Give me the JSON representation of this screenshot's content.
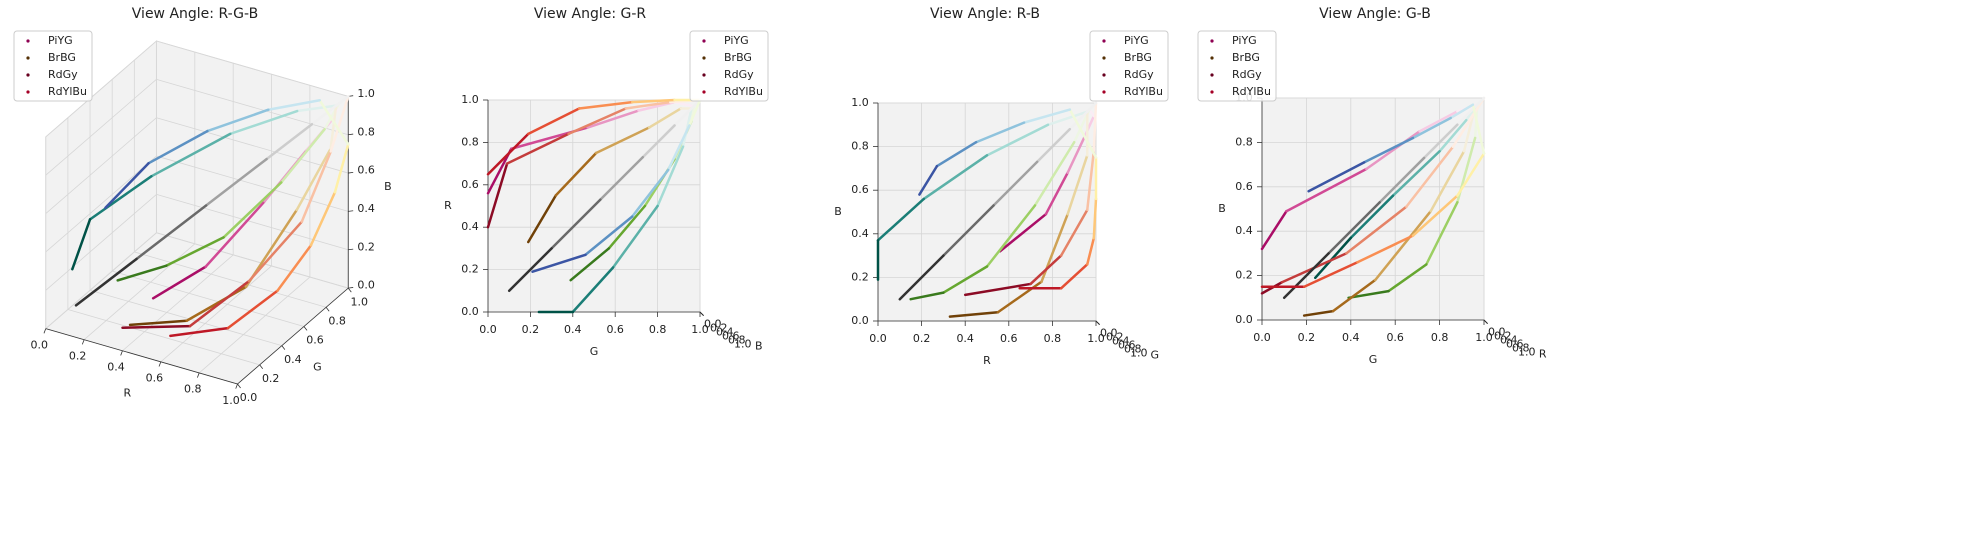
{
  "chart_data": [
    {
      "type": "line3d",
      "title": "View Angle: R-G-B",
      "xlabel": "R",
      "ylabel": "G",
      "zlabel": "B",
      "elev": 30,
      "azim": -60,
      "xlim": [
        0,
        1
      ],
      "ylim": [
        0,
        1
      ],
      "zlim": [
        0,
        1
      ],
      "xticks": [
        {
          "value": 0,
          "label": "0.0"
        },
        0.2,
        0.4,
        0.6,
        0.8,
        {
          "value": 1,
          "label": "1.0"
        }
      ],
      "yticks": [
        {
          "value": 0,
          "label": "0.0"
        },
        0.2,
        0.4,
        0.6,
        0.8,
        {
          "value": 1,
          "label": "1.0"
        }
      ],
      "zticks": [
        {
          "value": 0,
          "label": "0.0"
        },
        0.2,
        0.4,
        0.6,
        0.8,
        {
          "value": 1,
          "label": "1.0"
        }
      ],
      "grid": true,
      "legend": "upper left",
      "series": [
        {
          "name": "PiYG",
          "color": "#8e0152",
          "x": [
            0.56,
            0.77,
            0.87,
            0.95,
            0.99,
            0.97,
            0.9,
            0.72,
            0.5,
            0.3,
            0.15
          ],
          "y": [
            0,
            0.11,
            0.47,
            0.71,
            0.88,
            0.97,
            0.96,
            0.88,
            0.74,
            0.57,
            0.39
          ],
          "z": [
            0.32,
            0.49,
            0.68,
            0.85,
            0.94,
            0.97,
            0.82,
            0.53,
            0.25,
            0.13,
            0.1
          ]
        },
        {
          "name": "BrBG",
          "color": "#543005",
          "x": [
            0.33,
            0.55,
            0.75,
            0.87,
            0.96,
            0.96,
            0.78,
            0.5,
            0.21,
            0,
            0
          ],
          "y": [
            0.19,
            0.32,
            0.51,
            0.76,
            0.91,
            0.96,
            0.92,
            0.8,
            0.59,
            0.4,
            0.24
          ],
          "z": [
            0.02,
            0.04,
            0.18,
            0.49,
            0.76,
            0.96,
            0.9,
            0.76,
            0.56,
            0.37,
            0.19
          ]
        },
        {
          "name": "RdGy",
          "color": "#67001f",
          "x": [
            0.4,
            0.7,
            0.84,
            0.96,
            0.99,
            1,
            0.88,
            0.73,
            0.53,
            0.3,
            0.1
          ],
          "y": [
            0,
            0.09,
            0.38,
            0.65,
            0.86,
            1,
            0.88,
            0.73,
            0.53,
            0.3,
            0.1
          ],
          "z": [
            0.12,
            0.17,
            0.3,
            0.51,
            0.78,
            1,
            0.88,
            0.73,
            0.53,
            0.3,
            0.1
          ]
        },
        {
          "name": "RdYlBu",
          "color": "#a50026",
          "x": [
            0.65,
            0.84,
            0.96,
            0.99,
            1,
            1,
            0.88,
            0.67,
            0.45,
            0.27,
            0.19
          ],
          "y": [
            0,
            0.19,
            0.43,
            0.68,
            0.88,
            1,
            0.95,
            0.85,
            0.68,
            0.46,
            0.21
          ],
          "z": [
            0.15,
            0.15,
            0.26,
            0.38,
            0.56,
            0.75,
            0.97,
            0.91,
            0.82,
            0.71,
            0.58
          ]
        }
      ]
    },
    {
      "type": "line3d",
      "title": "View Angle: G-R",
      "xlabel": "R",
      "ylabel": "G",
      "zlabel": "B",
      "elev": -90,
      "azim": 0,
      "xlim": [
        0,
        1
      ],
      "ylim": [
        0,
        1
      ],
      "zlim": [
        0,
        1
      ],
      "xticks": [
        {
          "value": 0,
          "label": "0.0"
        },
        0.2,
        0.4,
        0.6,
        0.8,
        {
          "value": 1,
          "label": "1.0"
        }
      ],
      "yticks": [
        {
          "value": 0,
          "label": "0.0"
        },
        0.2,
        0.4,
        0.6,
        0.8,
        {
          "value": 1,
          "label": "1.0"
        }
      ],
      "zticks": [
        {
          "value": 0,
          "label": "0.0"
        },
        0.2,
        0.4,
        0.6,
        0.8,
        {
          "value": 1,
          "label": "1.0"
        }
      ],
      "grid": true,
      "legend": "upper right",
      "series": [
        {
          "name": "PiYG",
          "color": "#8e0152",
          "x": [
            0.56,
            0.77,
            0.87,
            0.95,
            0.99,
            0.97,
            0.9,
            0.72,
            0.5,
            0.3,
            0.15
          ],
          "y": [
            0,
            0.11,
            0.47,
            0.71,
            0.88,
            0.97,
            0.96,
            0.88,
            0.74,
            0.57,
            0.39
          ],
          "z": [
            0.32,
            0.49,
            0.68,
            0.85,
            0.94,
            0.97,
            0.82,
            0.53,
            0.25,
            0.13,
            0.1
          ]
        },
        {
          "name": "BrBG",
          "color": "#543005",
          "x": [
            0.33,
            0.55,
            0.75,
            0.87,
            0.96,
            0.96,
            0.78,
            0.5,
            0.21,
            0,
            0
          ],
          "y": [
            0.19,
            0.32,
            0.51,
            0.76,
            0.91,
            0.96,
            0.92,
            0.8,
            0.59,
            0.4,
            0.24
          ],
          "z": [
            0.02,
            0.04,
            0.18,
            0.49,
            0.76,
            0.96,
            0.9,
            0.76,
            0.56,
            0.37,
            0.19
          ]
        },
        {
          "name": "RdGy",
          "color": "#67001f",
          "x": [
            0.4,
            0.7,
            0.84,
            0.96,
            0.99,
            1,
            0.88,
            0.73,
            0.53,
            0.3,
            0.1
          ],
          "y": [
            0,
            0.09,
            0.38,
            0.65,
            0.86,
            1,
            0.88,
            0.73,
            0.53,
            0.3,
            0.1
          ],
          "z": [
            0.12,
            0.17,
            0.3,
            0.51,
            0.78,
            1,
            0.88,
            0.73,
            0.53,
            0.3,
            0.1
          ]
        },
        {
          "name": "RdYlBu",
          "color": "#a50026",
          "x": [
            0.65,
            0.84,
            0.96,
            0.99,
            1,
            1,
            0.88,
            0.67,
            0.45,
            0.27,
            0.19
          ],
          "y": [
            0,
            0.19,
            0.43,
            0.68,
            0.88,
            1,
            0.95,
            0.85,
            0.68,
            0.46,
            0.21
          ],
          "z": [
            0.15,
            0.15,
            0.26,
            0.38,
            0.56,
            0.75,
            0.97,
            0.91,
            0.82,
            0.71,
            0.58
          ]
        }
      ]
    },
    {
      "type": "line3d",
      "title": "View Angle: R-B",
      "xlabel": "R",
      "ylabel": "G",
      "zlabel": "B",
      "elev": 0,
      "azim": -90,
      "xlim": [
        0,
        1
      ],
      "ylim": [
        0,
        1
      ],
      "zlim": [
        0,
        1
      ],
      "xticks": [
        {
          "value": 0,
          "label": "0.0"
        },
        0.2,
        0.4,
        0.6,
        0.8,
        {
          "value": 1,
          "label": "1.0"
        }
      ],
      "yticks": [
        {
          "value": 0,
          "label": "0.0"
        },
        0.2,
        0.4,
        0.6,
        0.8,
        {
          "value": 1,
          "label": "1.0"
        }
      ],
      "zticks": [
        {
          "value": 0,
          "label": "0.0"
        },
        0.2,
        0.4,
        0.6,
        0.8,
        {
          "value": 1,
          "label": "1.0"
        }
      ],
      "grid": true,
      "legend": "upper right",
      "series": [
        {
          "name": "PiYG",
          "color": "#8e0152",
          "x": [
            0.56,
            0.77,
            0.87,
            0.95,
            0.99,
            0.97,
            0.9,
            0.72,
            0.5,
            0.3,
            0.15
          ],
          "y": [
            0,
            0.11,
            0.47,
            0.71,
            0.88,
            0.97,
            0.96,
            0.88,
            0.74,
            0.57,
            0.39
          ],
          "z": [
            0.32,
            0.49,
            0.68,
            0.85,
            0.94,
            0.97,
            0.82,
            0.53,
            0.25,
            0.13,
            0.1
          ]
        },
        {
          "name": "BrBG",
          "color": "#543005",
          "x": [
            0.33,
            0.55,
            0.75,
            0.87,
            0.96,
            0.96,
            0.78,
            0.5,
            0.21,
            0,
            0
          ],
          "y": [
            0.19,
            0.32,
            0.51,
            0.76,
            0.91,
            0.96,
            0.92,
            0.8,
            0.59,
            0.4,
            0.24
          ],
          "z": [
            0.02,
            0.04,
            0.18,
            0.49,
            0.76,
            0.96,
            0.9,
            0.76,
            0.56,
            0.37,
            0.19
          ]
        },
        {
          "name": "RdGy",
          "color": "#67001f",
          "x": [
            0.4,
            0.7,
            0.84,
            0.96,
            0.99,
            1,
            0.88,
            0.73,
            0.53,
            0.3,
            0.1
          ],
          "y": [
            0,
            0.09,
            0.38,
            0.65,
            0.86,
            1,
            0.88,
            0.73,
            0.53,
            0.3,
            0.1
          ],
          "z": [
            0.12,
            0.17,
            0.3,
            0.51,
            0.78,
            1,
            0.88,
            0.73,
            0.53,
            0.3,
            0.1
          ]
        },
        {
          "name": "RdYlBu",
          "color": "#a50026",
          "x": [
            0.65,
            0.84,
            0.96,
            0.99,
            1,
            1,
            0.88,
            0.67,
            0.45,
            0.27,
            0.19
          ],
          "y": [
            0,
            0.19,
            0.43,
            0.68,
            0.88,
            1,
            0.95,
            0.85,
            0.68,
            0.46,
            0.21
          ],
          "z": [
            0.15,
            0.15,
            0.26,
            0.38,
            0.56,
            0.75,
            0.97,
            0.91,
            0.82,
            0.71,
            0.58
          ]
        }
      ]
    },
    {
      "type": "line3d",
      "title": "View Angle: G-B",
      "xlabel": "R",
      "ylabel": "G",
      "zlabel": "B",
      "elev": 0,
      "azim": 0,
      "xlim": [
        0,
        1
      ],
      "ylim": [
        0,
        1
      ],
      "zlim": [
        0,
        1
      ],
      "xticks": [
        {
          "value": 0,
          "label": "0.0"
        },
        0.2,
        0.4,
        0.6,
        0.8,
        {
          "value": 1,
          "label": "1.0"
        }
      ],
      "yticks": [
        {
          "value": 0,
          "label": "0.0"
        },
        0.2,
        0.4,
        0.6,
        0.8,
        {
          "value": 1,
          "label": "1.0"
        }
      ],
      "zticks": [
        {
          "value": 0,
          "label": "0.0"
        },
        0.2,
        0.4,
        0.6,
        0.8,
        {
          "value": 1,
          "label": "1.0"
        }
      ],
      "grid": true,
      "legend": "upper left",
      "series": [
        {
          "name": "PiYG",
          "color": "#8e0152",
          "x": [
            0.56,
            0.77,
            0.87,
            0.95,
            0.99,
            0.97,
            0.9,
            0.72,
            0.5,
            0.3,
            0.15
          ],
          "y": [
            0,
            0.11,
            0.47,
            0.71,
            0.88,
            0.97,
            0.96,
            0.88,
            0.74,
            0.57,
            0.39
          ],
          "z": [
            0.32,
            0.49,
            0.68,
            0.85,
            0.94,
            0.97,
            0.82,
            0.53,
            0.25,
            0.13,
            0.1
          ]
        },
        {
          "name": "BrBG",
          "color": "#543005",
          "x": [
            0.33,
            0.55,
            0.75,
            0.87,
            0.96,
            0.96,
            0.78,
            0.5,
            0.21,
            0,
            0
          ],
          "y": [
            0.19,
            0.32,
            0.51,
            0.76,
            0.91,
            0.96,
            0.92,
            0.8,
            0.59,
            0.4,
            0.24
          ],
          "z": [
            0.02,
            0.04,
            0.18,
            0.49,
            0.76,
            0.96,
            0.9,
            0.76,
            0.56,
            0.37,
            0.19
          ]
        },
        {
          "name": "RdGy",
          "color": "#67001f",
          "x": [
            0.4,
            0.7,
            0.84,
            0.96,
            0.99,
            1,
            0.88,
            0.73,
            0.53,
            0.3,
            0.1
          ],
          "y": [
            0,
            0.09,
            0.38,
            0.65,
            0.86,
            1,
            0.88,
            0.73,
            0.53,
            0.3,
            0.1
          ],
          "z": [
            0.12,
            0.17,
            0.3,
            0.51,
            0.78,
            1,
            0.88,
            0.73,
            0.53,
            0.3,
            0.1
          ]
        },
        {
          "name": "RdYlBu",
          "color": "#a50026",
          "x": [
            0.65,
            0.84,
            0.96,
            0.99,
            1,
            1,
            0.88,
            0.67,
            0.45,
            0.27,
            0.19
          ],
          "y": [
            0,
            0.19,
            0.43,
            0.68,
            0.88,
            1,
            0.95,
            0.85,
            0.68,
            0.46,
            0.21
          ],
          "z": [
            0.15,
            0.15,
            0.26,
            0.38,
            0.56,
            0.75,
            0.97,
            0.91,
            0.82,
            0.71,
            0.58
          ]
        }
      ]
    }
  ]
}
